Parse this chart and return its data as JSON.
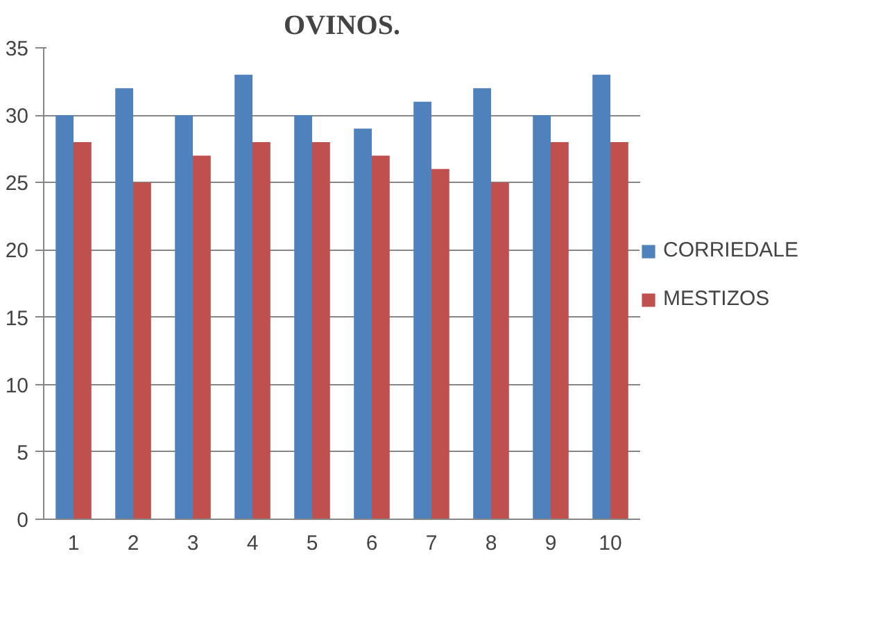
{
  "chart_data": {
    "type": "bar",
    "title": "OVINOS.",
    "categories": [
      "1",
      "2",
      "3",
      "4",
      "5",
      "6",
      "7",
      "8",
      "9",
      "10"
    ],
    "series": [
      {
        "name": "CORRIEDALE",
        "color": "#4f81bd",
        "values": [
          30,
          32,
          30,
          33,
          30,
          29,
          31,
          32,
          30,
          33
        ]
      },
      {
        "name": "MESTIZOS",
        "color": "#c0504d",
        "values": [
          28,
          25,
          27,
          28,
          28,
          27,
          26,
          25,
          28,
          28
        ]
      }
    ],
    "ylim": [
      0,
      35
    ],
    "yticks": [
      0,
      5,
      10,
      15,
      20,
      25,
      30,
      35
    ],
    "grid": "y",
    "legend": "right"
  }
}
